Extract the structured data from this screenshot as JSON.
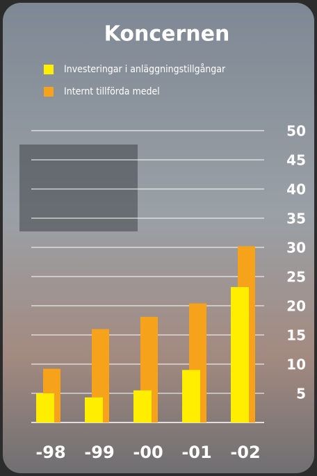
{
  "chart_data": {
    "type": "bar",
    "title": "Koncernen",
    "categories": [
      "-98",
      "-99",
      "-00",
      "-01",
      "-02"
    ],
    "series": [
      {
        "name": "Investeringar i anläggningstillgångar",
        "color": "#ffee00",
        "values": [
          5,
          4.3,
          5.5,
          9,
          23.2
        ]
      },
      {
        "name": "Internt tillförda medel",
        "color": "#f7a21b",
        "values": [
          9.2,
          16,
          18.1,
          20.4,
          30.2
        ]
      }
    ],
    "ylim": [
      0,
      50
    ],
    "yticks": [
      5,
      10,
      15,
      20,
      25,
      30,
      35,
      40,
      45,
      50
    ],
    "grid": true
  }
}
